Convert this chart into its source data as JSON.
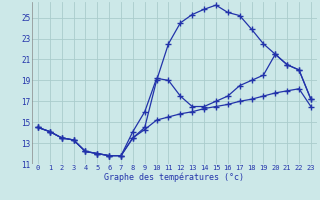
{
  "xlabel": "Graphe des températures (°c)",
  "bg_color": "#cce8e8",
  "line_color": "#2233aa",
  "grid_color": "#aacccc",
  "xlim": [
    -0.5,
    23.5
  ],
  "ylim": [
    11,
    26.5
  ],
  "yticks": [
    11,
    13,
    15,
    17,
    19,
    21,
    23,
    25
  ],
  "xticks": [
    0,
    1,
    2,
    3,
    4,
    5,
    6,
    7,
    8,
    9,
    10,
    11,
    12,
    13,
    14,
    15,
    16,
    17,
    18,
    19,
    20,
    21,
    22,
    23
  ],
  "line1_x": [
    0,
    1,
    2,
    3,
    4,
    5,
    6,
    7,
    8,
    9,
    10,
    11,
    12,
    13,
    14,
    15,
    16,
    17,
    18,
    19,
    20,
    21,
    22,
    23
  ],
  "line1_y": [
    14.5,
    14.1,
    13.5,
    13.3,
    12.2,
    12.0,
    11.8,
    11.8,
    13.5,
    14.5,
    19.0,
    22.5,
    24.5,
    25.3,
    25.8,
    26.2,
    25.5,
    25.2,
    23.9,
    22.5,
    21.5,
    20.5,
    20.0,
    17.2
  ],
  "line2_x": [
    0,
    1,
    2,
    3,
    4,
    5,
    6,
    7,
    8,
    9,
    10,
    11,
    12,
    13,
    14,
    15,
    16,
    17,
    18,
    19,
    20,
    21,
    22,
    23
  ],
  "line2_y": [
    14.5,
    14.1,
    13.5,
    13.3,
    12.2,
    12.0,
    11.8,
    11.8,
    14.1,
    16.0,
    19.2,
    19.0,
    17.5,
    16.5,
    16.5,
    17.0,
    17.5,
    18.5,
    19.0,
    19.5,
    21.5,
    20.5,
    20.0,
    17.2
  ],
  "line3_x": [
    0,
    1,
    2,
    3,
    4,
    5,
    6,
    7,
    8,
    9,
    10,
    11,
    12,
    13,
    14,
    15,
    16,
    17,
    18,
    19,
    20,
    21,
    22,
    23
  ],
  "line3_y": [
    14.5,
    14.1,
    13.5,
    13.3,
    12.2,
    12.0,
    11.8,
    11.8,
    13.5,
    14.3,
    15.2,
    15.5,
    15.8,
    16.0,
    16.3,
    16.5,
    16.7,
    17.0,
    17.2,
    17.5,
    17.8,
    18.0,
    18.2,
    16.5
  ]
}
